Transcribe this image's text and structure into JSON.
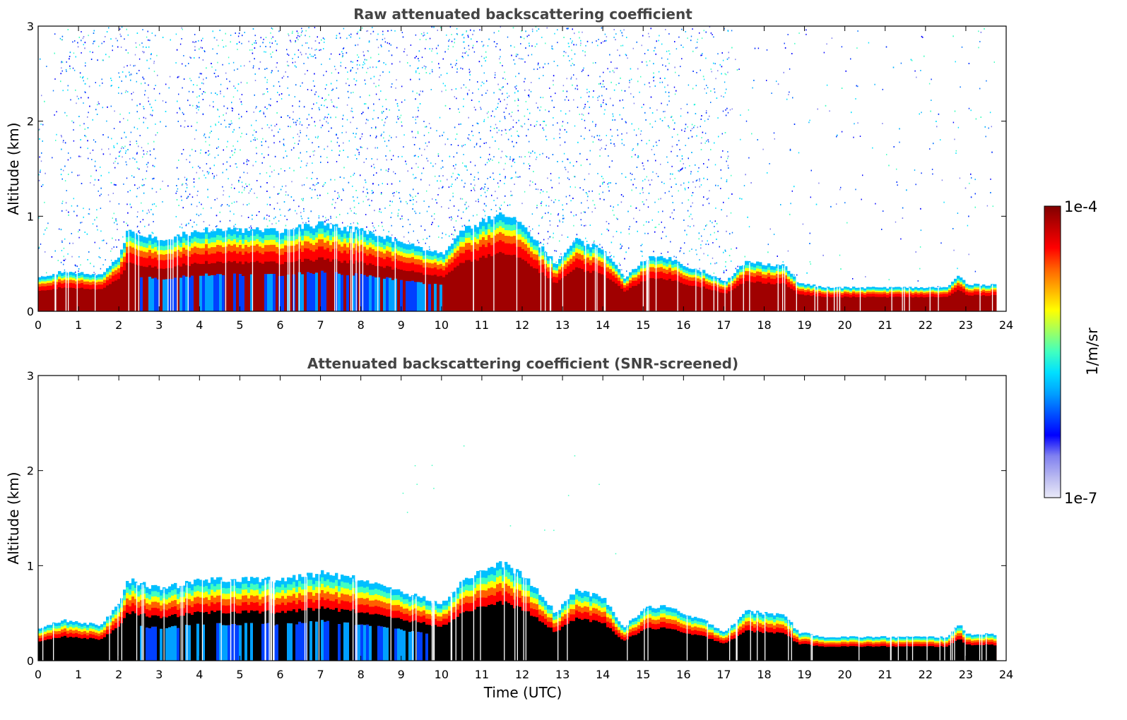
{
  "chart_data": [
    {
      "type": "heatmap",
      "title": "Raw attenuated backscattering coefficient",
      "xlabel": "",
      "ylabel": "Altitude (km)",
      "xlim": [
        0,
        24
      ],
      "ylim": [
        0,
        3
      ],
      "x_ticks": [
        "0",
        "1",
        "2",
        "3",
        "4",
        "5",
        "6",
        "7",
        "8",
        "9",
        "10",
        "11",
        "12",
        "13",
        "14",
        "15",
        "16",
        "17",
        "18",
        "19",
        "20",
        "21",
        "22",
        "23",
        "24"
      ],
      "y_ticks": [
        "0",
        "1",
        "2",
        "3"
      ],
      "grid": false,
      "data_end_hour": 23.7,
      "layer": [
        {
          "t": 0,
          "top": 0.35
        },
        {
          "t": 0.6,
          "top": 0.42
        },
        {
          "t": 1.5,
          "top": 0.38
        },
        {
          "t": 2.0,
          "top": 0.6
        },
        {
          "t": 2.2,
          "top": 0.85
        },
        {
          "t": 3.0,
          "top": 0.75
        },
        {
          "t": 4.0,
          "top": 0.85
        },
        {
          "t": 4.5,
          "top": 0.85
        },
        {
          "t": 6.0,
          "top": 0.85
        },
        {
          "t": 7.0,
          "top": 0.92
        },
        {
          "t": 8.0,
          "top": 0.85
        },
        {
          "t": 9.0,
          "top": 0.72
        },
        {
          "t": 10.0,
          "top": 0.6
        },
        {
          "t": 10.5,
          "top": 0.85
        },
        {
          "t": 11.0,
          "top": 0.95
        },
        {
          "t": 11.5,
          "top": 1.02
        },
        {
          "t": 12.0,
          "top": 0.9
        },
        {
          "t": 12.8,
          "top": 0.5
        },
        {
          "t": 13.3,
          "top": 0.75
        },
        {
          "t": 14.0,
          "top": 0.65
        },
        {
          "t": 14.5,
          "top": 0.35
        },
        {
          "t": 15.0,
          "top": 0.55
        },
        {
          "t": 15.5,
          "top": 0.58
        },
        {
          "t": 16.0,
          "top": 0.48
        },
        {
          "t": 16.5,
          "top": 0.42
        },
        {
          "t": 17.0,
          "top": 0.3
        },
        {
          "t": 17.5,
          "top": 0.52
        },
        {
          "t": 18.5,
          "top": 0.48
        },
        {
          "t": 18.8,
          "top": 0.3
        },
        {
          "t": 19.5,
          "top": 0.25
        },
        {
          "t": 22.5,
          "top": 0.25
        },
        {
          "t": 22.8,
          "top": 0.38
        },
        {
          "t": 23.0,
          "top": 0.28
        },
        {
          "t": 23.7,
          "top": 0.28
        }
      ],
      "noise_region_top_km": 3.0,
      "noise_dense_until_hour": 17.2
    },
    {
      "type": "heatmap",
      "title": "Attenuated backscattering coefficient (SNR-screened)",
      "xlabel": "Time (UTC)",
      "ylabel": "Altitude (km)",
      "xlim": [
        0,
        24
      ],
      "ylim": [
        0,
        3
      ],
      "x_ticks": [
        "0",
        "1",
        "2",
        "3",
        "4",
        "5",
        "6",
        "7",
        "8",
        "9",
        "10",
        "11",
        "12",
        "13",
        "14",
        "15",
        "16",
        "17",
        "18",
        "19",
        "20",
        "21",
        "22",
        "23",
        "24"
      ],
      "y_ticks": [
        "0",
        "1",
        "2",
        "3"
      ],
      "grid": false,
      "data_end_hour": 23.7,
      "screened_saturation_color": "#000000",
      "layer": [
        {
          "t": 0,
          "top": 0.35
        },
        {
          "t": 0.6,
          "top": 0.42
        },
        {
          "t": 1.5,
          "top": 0.38
        },
        {
          "t": 2.0,
          "top": 0.6
        },
        {
          "t": 2.2,
          "top": 0.85
        },
        {
          "t": 3.0,
          "top": 0.75
        },
        {
          "t": 4.0,
          "top": 0.85
        },
        {
          "t": 4.5,
          "top": 0.85
        },
        {
          "t": 6.0,
          "top": 0.85
        },
        {
          "t": 7.0,
          "top": 0.92
        },
        {
          "t": 8.0,
          "top": 0.85
        },
        {
          "t": 9.0,
          "top": 0.72
        },
        {
          "t": 10.0,
          "top": 0.6
        },
        {
          "t": 10.5,
          "top": 0.85
        },
        {
          "t": 11.0,
          "top": 0.95
        },
        {
          "t": 11.5,
          "top": 1.02
        },
        {
          "t": 12.0,
          "top": 0.9
        },
        {
          "t": 12.8,
          "top": 0.5
        },
        {
          "t": 13.3,
          "top": 0.75
        },
        {
          "t": 14.0,
          "top": 0.65
        },
        {
          "t": 14.5,
          "top": 0.35
        },
        {
          "t": 15.0,
          "top": 0.55
        },
        {
          "t": 15.5,
          "top": 0.58
        },
        {
          "t": 16.0,
          "top": 0.48
        },
        {
          "t": 16.5,
          "top": 0.42
        },
        {
          "t": 17.0,
          "top": 0.3
        },
        {
          "t": 17.5,
          "top": 0.52
        },
        {
          "t": 18.5,
          "top": 0.48
        },
        {
          "t": 18.8,
          "top": 0.3
        },
        {
          "t": 19.5,
          "top": 0.25
        },
        {
          "t": 22.5,
          "top": 0.25
        },
        {
          "t": 22.8,
          "top": 0.38
        },
        {
          "t": 23.0,
          "top": 0.28
        },
        {
          "t": 23.7,
          "top": 0.28
        }
      ]
    }
  ],
  "colorbar": {
    "max_label": "1e-4",
    "min_label": "1e-7",
    "unit_label": "1/m/sr",
    "scale": "log",
    "colormap": "jet",
    "stops": [
      "#eaeaf8",
      "#b8b8f0",
      "#8080f0",
      "#0000ff",
      "#0050ff",
      "#00a0ff",
      "#00e0ff",
      "#40ffc0",
      "#a0ff60",
      "#ffff00",
      "#ffb000",
      "#ff6000",
      "#ff0000",
      "#c00000",
      "#800000"
    ]
  }
}
